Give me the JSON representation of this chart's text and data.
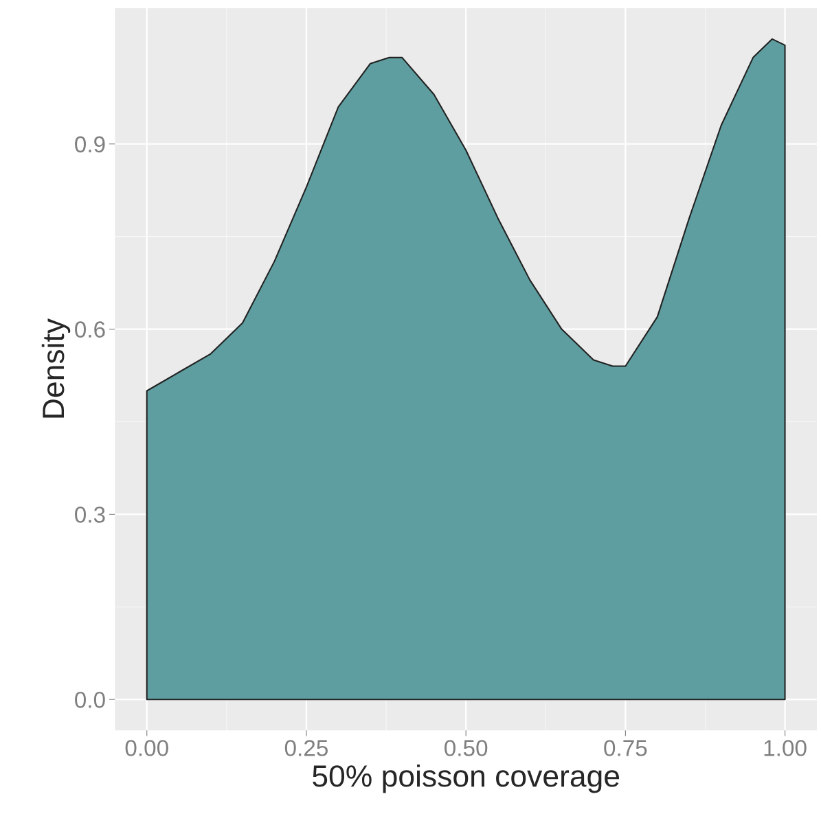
{
  "chart_data": {
    "type": "area",
    "xlabel": "50% poisson coverage",
    "ylabel": "Density",
    "x": [
      0,
      0.05,
      0.1,
      0.15,
      0.2,
      0.25,
      0.3,
      0.35,
      0.38,
      0.4,
      0.45,
      0.5,
      0.55,
      0.6,
      0.65,
      0.7,
      0.73,
      0.75,
      0.8,
      0.85,
      0.9,
      0.95,
      0.98,
      1.0
    ],
    "series": [
      {
        "color": "#5f9ea0",
        "values": [
          0.5,
          0.53,
          0.56,
          0.61,
          0.71,
          0.83,
          0.96,
          1.03,
          1.04,
          1.04,
          0.98,
          0.89,
          0.78,
          0.68,
          0.6,
          0.55,
          0.54,
          0.54,
          0.62,
          0.78,
          0.93,
          1.04,
          1.07,
          1.06
        ]
      }
    ],
    "xlim": [
      -0.05,
      1.05
    ],
    "ylim": [
      -0.05,
      1.12
    ],
    "xticks": [
      {
        "value": 0,
        "label": "0.00"
      },
      0.25,
      {
        "value": 0.5,
        "label": "0.50"
      },
      0.75,
      {
        "value": 1,
        "label": "1.00"
      }
    ],
    "yticks": [
      {
        "value": 0,
        "label": "0.0"
      },
      0.3,
      0.6,
      0.9
    ],
    "grid": true
  }
}
